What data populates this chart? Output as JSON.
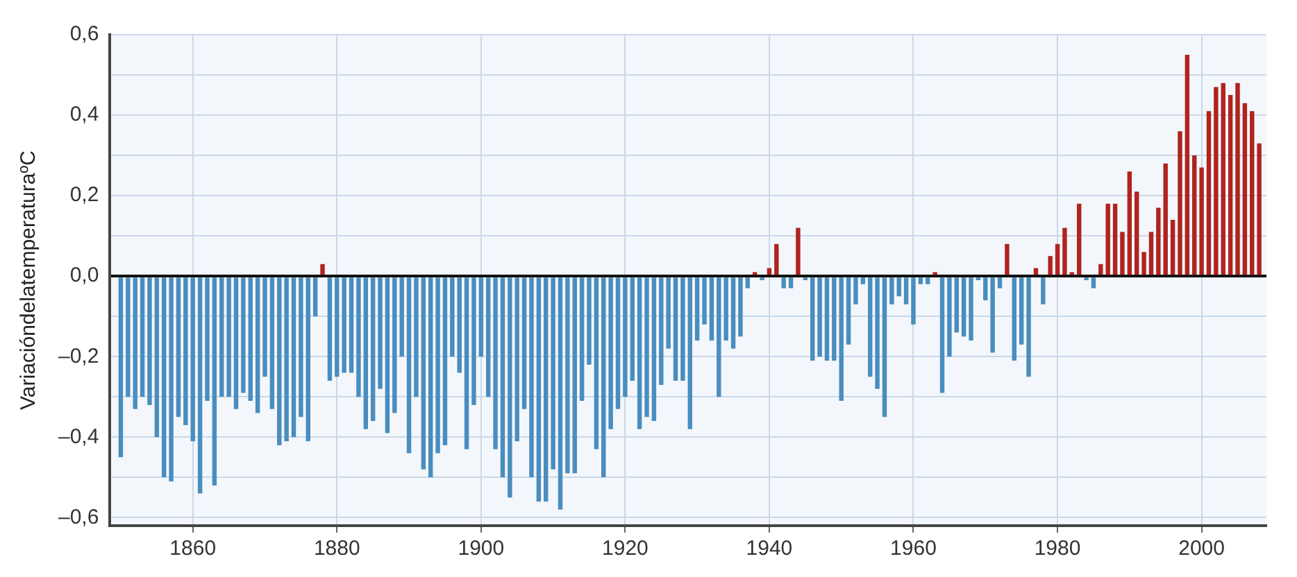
{
  "chart_data": {
    "type": "bar",
    "ylabel": "VariacióndelatemperaturaºC",
    "x": [
      1850,
      1851,
      1852,
      1853,
      1854,
      1855,
      1856,
      1857,
      1858,
      1859,
      1860,
      1861,
      1862,
      1863,
      1864,
      1865,
      1866,
      1867,
      1868,
      1869,
      1870,
      1871,
      1872,
      1873,
      1874,
      1875,
      1876,
      1877,
      1878,
      1879,
      1880,
      1881,
      1882,
      1883,
      1884,
      1885,
      1886,
      1887,
      1888,
      1889,
      1890,
      1891,
      1892,
      1893,
      1894,
      1895,
      1896,
      1897,
      1898,
      1899,
      1900,
      1901,
      1902,
      1903,
      1904,
      1905,
      1906,
      1907,
      1908,
      1909,
      1910,
      1911,
      1912,
      1913,
      1914,
      1915,
      1916,
      1917,
      1918,
      1919,
      1920,
      1921,
      1922,
      1923,
      1924,
      1925,
      1926,
      1927,
      1928,
      1929,
      1930,
      1931,
      1932,
      1933,
      1934,
      1935,
      1936,
      1937,
      1938,
      1939,
      1940,
      1941,
      1942,
      1943,
      1944,
      1945,
      1946,
      1947,
      1948,
      1949,
      1950,
      1951,
      1952,
      1953,
      1954,
      1955,
      1956,
      1957,
      1958,
      1959,
      1960,
      1961,
      1962,
      1963,
      1964,
      1965,
      1966,
      1967,
      1968,
      1969,
      1970,
      1971,
      1972,
      1973,
      1974,
      1975,
      1976,
      1977,
      1978,
      1979,
      1980,
      1981,
      1982,
      1983,
      1984,
      1985,
      1986,
      1987,
      1988,
      1989,
      1990,
      1991,
      1992,
      1993,
      1994,
      1995,
      1996,
      1997,
      1998,
      1999,
      2000,
      2001,
      2002,
      2003,
      2004,
      2005,
      2006,
      2007,
      2008
    ],
    "values": [
      -0.45,
      -0.3,
      -0.33,
      -0.3,
      -0.32,
      -0.4,
      -0.5,
      -0.51,
      -0.35,
      -0.37,
      -0.41,
      -0.54,
      -0.31,
      -0.52,
      -0.3,
      -0.3,
      -0.33,
      -0.29,
      -0.31,
      -0.34,
      -0.25,
      -0.33,
      -0.42,
      -0.41,
      -0.4,
      -0.35,
      -0.41,
      -0.1,
      0.03,
      -0.26,
      -0.25,
      -0.24,
      -0.24,
      -0.3,
      -0.38,
      -0.36,
      -0.28,
      -0.39,
      -0.34,
      -0.2,
      -0.44,
      -0.3,
      -0.48,
      -0.5,
      -0.44,
      -0.42,
      -0.2,
      -0.24,
      -0.43,
      -0.32,
      -0.2,
      -0.3,
      -0.43,
      -0.5,
      -0.55,
      -0.41,
      -0.33,
      -0.5,
      -0.56,
      -0.56,
      -0.48,
      -0.58,
      -0.49,
      -0.49,
      -0.31,
      -0.22,
      -0.43,
      -0.5,
      -0.38,
      -0.33,
      -0.3,
      -0.26,
      -0.38,
      -0.35,
      -0.36,
      -0.27,
      -0.18,
      -0.26,
      -0.26,
      -0.38,
      -0.16,
      -0.12,
      -0.16,
      -0.3,
      -0.16,
      -0.18,
      -0.15,
      -0.03,
      0.01,
      -0.01,
      0.02,
      0.08,
      -0.03,
      -0.03,
      0.12,
      -0.01,
      -0.21,
      -0.2,
      -0.21,
      -0.21,
      -0.31,
      -0.17,
      -0.07,
      -0.02,
      -0.25,
      -0.28,
      -0.35,
      -0.07,
      -0.05,
      -0.07,
      -0.12,
      -0.02,
      -0.02,
      0.01,
      -0.29,
      -0.2,
      -0.14,
      -0.15,
      -0.16,
      -0.01,
      -0.06,
      -0.19,
      -0.03,
      0.08,
      -0.21,
      -0.17,
      -0.25,
      0.02,
      -0.07,
      0.05,
      0.08,
      0.12,
      0.01,
      0.18,
      -0.01,
      -0.03,
      0.03,
      0.18,
      0.18,
      0.11,
      0.26,
      0.21,
      0.06,
      0.11,
      0.17,
      0.28,
      0.14,
      0.36,
      0.55,
      0.3,
      0.27,
      0.41,
      0.47,
      0.48,
      0.45,
      0.48,
      0.43,
      0.41,
      0.33
    ],
    "colors": [
      "#4a8dbf",
      "#4a8dbf",
      "#4a8dbf",
      "#4a8dbf",
      "#4a8dbf",
      "#4a8dbf",
      "#4a8dbf",
      "#4a8dbf",
      "#4a8dbf",
      "#4a8dbf",
      "#4a8dbf",
      "#4a8dbf",
      "#4a8dbf",
      "#4a8dbf",
      "#4a8dbf",
      "#4a8dbf",
      "#4a8dbf",
      "#4a8dbf",
      "#4a8dbf",
      "#4a8dbf",
      "#4a8dbf",
      "#4a8dbf",
      "#4a8dbf",
      "#4a8dbf",
      "#4a8dbf",
      "#4a8dbf",
      "#4a8dbf",
      "#4a8dbf",
      "#b0231e",
      "#4a8dbf",
      "#4a8dbf",
      "#4a8dbf",
      "#4a8dbf",
      "#4a8dbf",
      "#4a8dbf",
      "#4a8dbf",
      "#4a8dbf",
      "#4a8dbf",
      "#4a8dbf",
      "#4a8dbf",
      "#4a8dbf",
      "#4a8dbf",
      "#4a8dbf",
      "#4a8dbf",
      "#4a8dbf",
      "#4a8dbf",
      "#4a8dbf",
      "#4a8dbf",
      "#4a8dbf",
      "#4a8dbf",
      "#4a8dbf",
      "#4a8dbf",
      "#4a8dbf",
      "#4a8dbf",
      "#4a8dbf",
      "#4a8dbf",
      "#4a8dbf",
      "#4a8dbf",
      "#4a8dbf",
      "#4a8dbf",
      "#4a8dbf",
      "#4a8dbf",
      "#4a8dbf",
      "#4a8dbf",
      "#4a8dbf",
      "#4a8dbf",
      "#4a8dbf",
      "#4a8dbf",
      "#4a8dbf",
      "#4a8dbf",
      "#4a8dbf",
      "#4a8dbf",
      "#4a8dbf",
      "#4a8dbf",
      "#4a8dbf",
      "#4a8dbf",
      "#4a8dbf",
      "#4a8dbf",
      "#4a8dbf",
      "#4a8dbf",
      "#4a8dbf",
      "#4a8dbf",
      "#4a8dbf",
      "#4a8dbf",
      "#4a8dbf",
      "#4a8dbf",
      "#4a8dbf",
      "#4a8dbf",
      "#b0231e",
      "#4a8dbf",
      "#b0231e",
      "#b0231e",
      "#4a8dbf",
      "#4a8dbf",
      "#b0231e",
      "#4a8dbf",
      "#4a8dbf",
      "#4a8dbf",
      "#4a8dbf",
      "#4a8dbf",
      "#4a8dbf",
      "#4a8dbf",
      "#4a8dbf",
      "#4a8dbf",
      "#4a8dbf",
      "#4a8dbf",
      "#4a8dbf",
      "#4a8dbf",
      "#4a8dbf",
      "#4a8dbf",
      "#4a8dbf",
      "#4a8dbf",
      "#4a8dbf",
      "#b0231e",
      "#4a8dbf",
      "#4a8dbf",
      "#4a8dbf",
      "#4a8dbf",
      "#4a8dbf",
      "#4a8dbf",
      "#4a8dbf",
      "#4a8dbf",
      "#4a8dbf",
      "#b0231e",
      "#4a8dbf",
      "#4a8dbf",
      "#4a8dbf",
      "#b0231e",
      "#4a8dbf",
      "#b0231e",
      "#b0231e",
      "#b0231e",
      "#b0231e",
      "#b0231e",
      "#4a8dbf",
      "#4a8dbf",
      "#b0231e",
      "#b0231e",
      "#b0231e",
      "#b0231e",
      "#b0231e",
      "#b0231e",
      "#b0231e",
      "#b0231e",
      "#b0231e",
      "#b0231e",
      "#b0231e",
      "#b0231e",
      "#b0231e",
      "#b0231e",
      "#b0231e",
      "#b0231e",
      "#b0231e",
      "#b0231e",
      "#b0231e",
      "#b0231e",
      "#b0231e",
      "#b0231e",
      "#b0231e"
    ],
    "xlim": [
      1848.5,
      2009
    ],
    "xticks": [
      1860,
      1880,
      1900,
      1920,
      1940,
      1960,
      1980,
      2000
    ],
    "ylim": [
      -0.62,
      0.6
    ],
    "yticks": [
      {
        "value": -0.6,
        "label": "–0,6"
      },
      {
        "value": -0.5,
        "label": null
      },
      {
        "value": -0.4,
        "label": "–0,4"
      },
      {
        "value": -0.3,
        "label": null
      },
      {
        "value": -0.2,
        "label": "–0,2"
      },
      {
        "value": -0.1,
        "label": null
      },
      {
        "value": 0,
        "label": "0,0"
      },
      {
        "value": 0.1,
        "label": null
      },
      {
        "value": 0.2,
        "label": "0,2"
      },
      {
        "value": 0.3,
        "label": null
      },
      {
        "value": 0.4,
        "label": "0,4"
      },
      {
        "value": 0.5,
        "label": null
      },
      {
        "value": 0.6,
        "label": "0,6"
      }
    ],
    "grid": true,
    "legend": false
  }
}
